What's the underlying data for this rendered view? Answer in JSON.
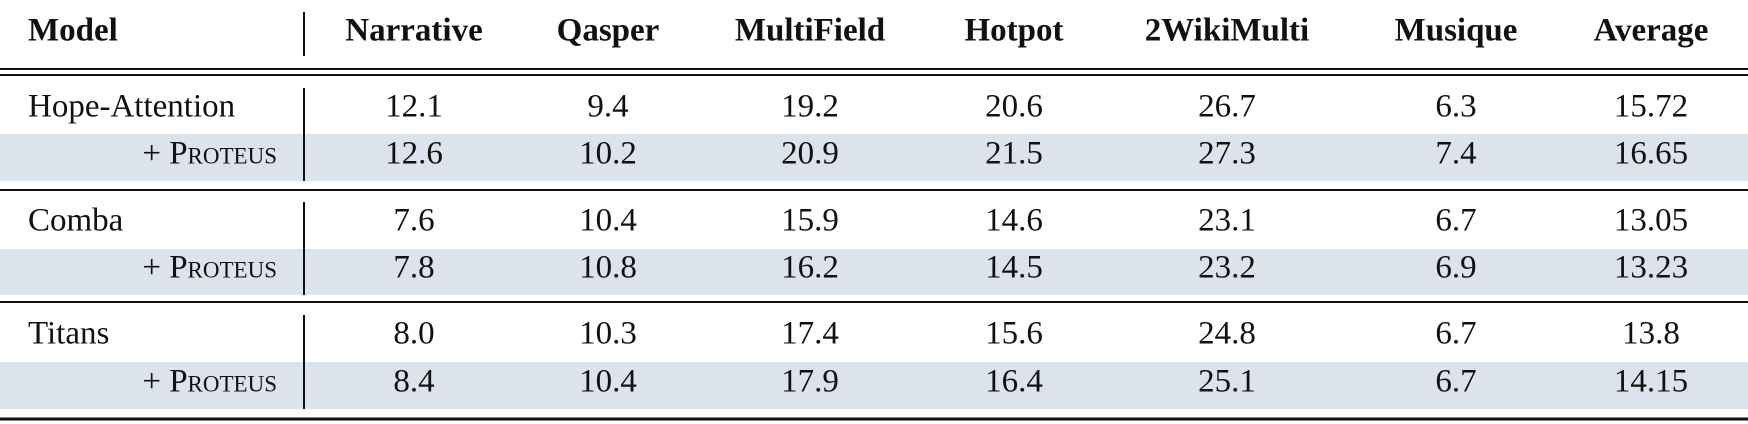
{
  "table": {
    "header": [
      "Model",
      "Narrative",
      "Qasper",
      "MultiField",
      "Hotpot",
      "2WikiMulti",
      "Musique",
      "Average"
    ],
    "rows": [
      [
        "Hope-Attention",
        "12.1",
        "9.4",
        "19.2",
        "20.6",
        "26.7",
        "6.3",
        "15.72"
      ],
      [
        "+ Proteus",
        "12.6",
        "10.2",
        "20.9",
        "21.5",
        "27.3",
        "7.4",
        "16.65"
      ],
      [
        "Comba",
        "7.6",
        "10.4",
        "15.9",
        "14.6",
        "23.1",
        "6.7",
        "13.05"
      ],
      [
        "+ Proteus",
        "7.8",
        "10.8",
        "16.2",
        "14.5",
        "23.2",
        "6.9",
        "13.23"
      ],
      [
        "Titans",
        "8.0",
        "10.3",
        "17.4",
        "15.6",
        "24.8",
        "6.7",
        "13.8"
      ],
      [
        "+ Proteus",
        "8.4",
        "10.4",
        "17.9",
        "16.4",
        "25.1",
        "6.7",
        "14.15"
      ]
    ]
  }
}
